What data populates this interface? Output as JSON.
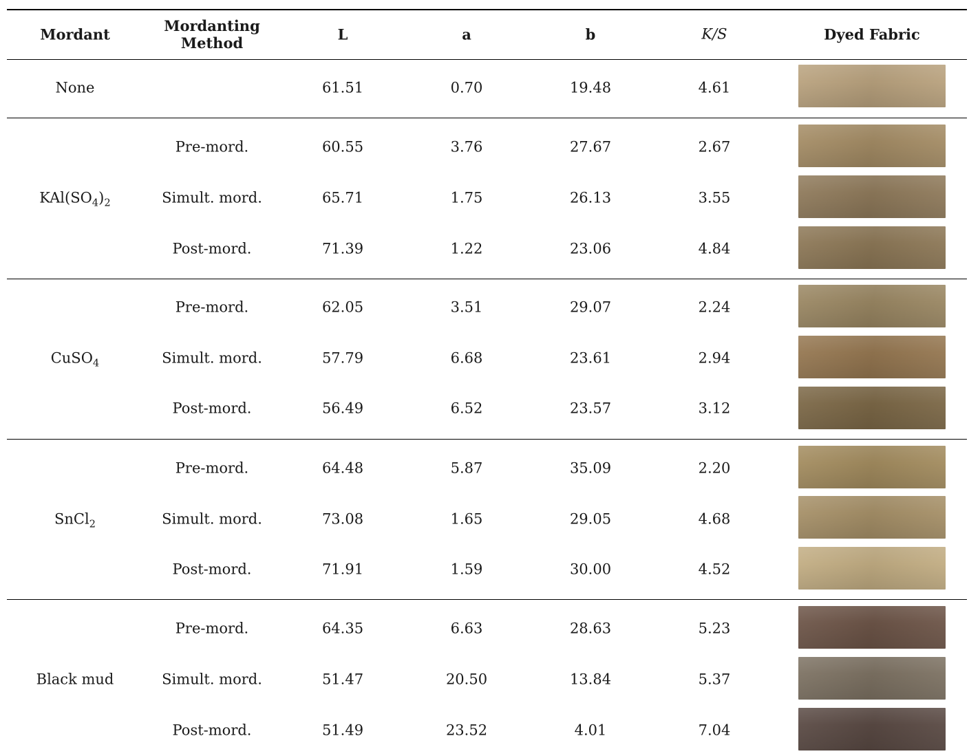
{
  "table": {
    "headers": {
      "mordant": "Mordant",
      "method_line1": "Mordanting",
      "method_line2": "Method",
      "L": "L",
      "a": "a",
      "b": "b",
      "ks": "K/S",
      "fabric": "Dyed Fabric"
    },
    "groups": [
      {
        "mordant_base": "None",
        "rows": [
          {
            "method": "",
            "L": "61.51",
            "a": "0.70",
            "b": "19.48",
            "ks": "4.61",
            "color": "#b9a27e"
          }
        ]
      },
      {
        "mordant_base": "KAl(SO",
        "mordant_sub1": "4",
        "mordant_mid": ")",
        "mordant_sub2": "2",
        "rows": [
          {
            "method": "Pre-mord.",
            "L": "60.55",
            "a": "3.76",
            "b": "27.67",
            "ks": "2.67",
            "color": "#a48c65"
          },
          {
            "method": "Simult. mord.",
            "L": "65.71",
            "a": "1.75",
            "b": "26.13",
            "ks": "3.55",
            "color": "#8f7a5b"
          },
          {
            "method": "Post-mord.",
            "L": "71.39",
            "a": "1.22",
            "b": "23.06",
            "ks": "4.84",
            "color": "#8d7857"
          }
        ]
      },
      {
        "mordant_base": "CuSO",
        "mordant_sub1": "4",
        "rows": [
          {
            "method": "Pre-mord.",
            "L": "62.05",
            "a": "3.51",
            "b": "29.07",
            "ks": "2.24",
            "color": "#9a8763"
          },
          {
            "method": "Simult. mord.",
            "L": "57.79",
            "a": "6.68",
            "b": "23.61",
            "ks": "2.94",
            "color": "#957751"
          },
          {
            "method": "Post-mord.",
            "L": "56.49",
            "a": "6.52",
            "b": "23.57",
            "ks": "3.12",
            "color": "#7c6847"
          }
        ]
      },
      {
        "mordant_base": "SnCl",
        "mordant_sub1": "2",
        "rows": [
          {
            "method": "Pre-mord.",
            "L": "64.48",
            "a": "5.87",
            "b": "35.09",
            "ks": "2.20",
            "color": "#a38c5f"
          },
          {
            "method": "Simult. mord.",
            "L": "73.08",
            "a": "1.65",
            "b": "29.05",
            "ks": "4.68",
            "color": "#a69068"
          },
          {
            "method": "Post-mord.",
            "L": "71.91",
            "a": "1.59",
            "b": "30.00",
            "ks": "4.52",
            "color": "#c2ad83"
          }
        ]
      },
      {
        "mordant_base": "Black mud",
        "rows": [
          {
            "method": "Pre-mord.",
            "L": "64.35",
            "a": "6.63",
            "b": "28.63",
            "ks": "5.23",
            "color": "#6d5548"
          },
          {
            "method": "Simult. mord.",
            "L": "51.47",
            "a": "20.50",
            "b": "13.84",
            "ks": "5.37",
            "color": "#7d7263"
          },
          {
            "method": "Post-mord.",
            "L": "51.49",
            "a": "23.52",
            "b": "4.01",
            "ks": "7.04",
            "color": "#5a4a44"
          }
        ]
      }
    ]
  }
}
